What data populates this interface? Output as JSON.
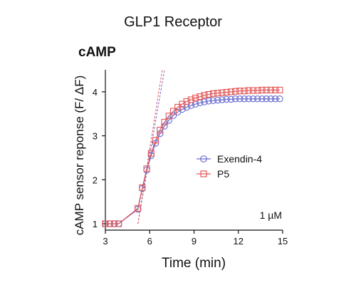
{
  "chart_data": {
    "type": "line",
    "title": "GLP1 Receptor",
    "subtitle": "cAMP",
    "xlabel": "Time (min)",
    "ylabel": "cAMP sensor reponse (F/ ΔF)",
    "xlim": [
      3,
      15
    ],
    "ylim": [
      1,
      4.5
    ],
    "xticks": [
      3,
      6,
      9,
      12,
      15
    ],
    "yticks": [
      1,
      2,
      3,
      4
    ],
    "annotation": "1 µM",
    "legend_position": "center-right",
    "grid": false,
    "series": [
      {
        "name": "Exendin-4",
        "color": "#6a6fd0",
        "marker": "circle",
        "x": [
          3.0,
          3.3,
          3.6,
          3.9,
          5.2,
          5.5,
          5.8,
          6.1,
          6.4,
          6.7,
          7.0,
          7.3,
          7.6,
          7.9,
          8.2,
          8.5,
          8.8,
          9.1,
          9.4,
          9.7,
          10.0,
          10.3,
          10.6,
          10.9,
          11.2,
          11.5,
          11.8,
          12.1,
          12.4,
          12.7,
          13.0,
          13.3,
          13.6,
          13.9,
          14.2,
          14.5,
          14.8
        ],
        "y": [
          1.0,
          1.0,
          1.0,
          1.0,
          1.33,
          1.8,
          2.22,
          2.55,
          2.83,
          3.05,
          3.22,
          3.35,
          3.46,
          3.54,
          3.6,
          3.65,
          3.69,
          3.72,
          3.75,
          3.77,
          3.79,
          3.8,
          3.81,
          3.82,
          3.83,
          3.83,
          3.84,
          3.84,
          3.84,
          3.84,
          3.84,
          3.84,
          3.84,
          3.84,
          3.84,
          3.84,
          3.84
        ]
      },
      {
        "name": "P5",
        "color": "#e45757",
        "marker": "square",
        "x": [
          3.0,
          3.3,
          3.6,
          3.9,
          5.2,
          5.5,
          5.8,
          6.1,
          6.4,
          6.7,
          7.0,
          7.3,
          7.6,
          7.9,
          8.2,
          8.5,
          8.8,
          9.1,
          9.4,
          9.7,
          10.0,
          10.3,
          10.6,
          10.9,
          11.2,
          11.5,
          11.8,
          12.1,
          12.4,
          12.7,
          13.0,
          13.3,
          13.6,
          13.9,
          14.2,
          14.5,
          14.8
        ],
        "y": [
          1.0,
          1.0,
          1.0,
          1.0,
          1.35,
          1.82,
          2.25,
          2.6,
          2.9,
          3.13,
          3.31,
          3.45,
          3.56,
          3.65,
          3.72,
          3.78,
          3.82,
          3.86,
          3.89,
          3.92,
          3.94,
          3.96,
          3.97,
          3.98,
          3.99,
          4.0,
          4.01,
          4.02,
          4.02,
          4.03,
          4.03,
          4.03,
          4.04,
          4.04,
          4.04,
          4.04,
          4.04
        ]
      }
    ],
    "initial_slope_lines": [
      {
        "series": "Exendin-4",
        "color": "#6a6fd0",
        "style": "dashed",
        "x": [
          5.2,
          7.0
        ],
        "y": [
          1.0,
          4.5
        ]
      },
      {
        "series": "P5",
        "color": "#e45757",
        "style": "dashed",
        "x": [
          5.2,
          6.85
        ],
        "y": [
          1.0,
          4.5
        ]
      }
    ]
  }
}
